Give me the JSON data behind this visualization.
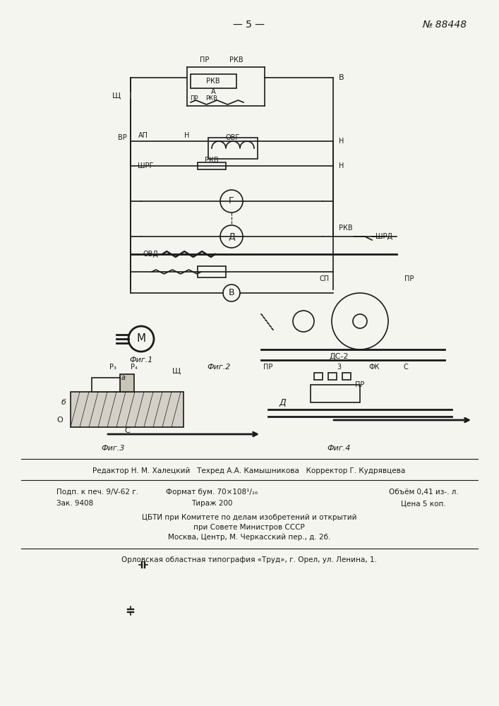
{
  "page_number": "— 5 —",
  "patent_number": "№ 88448",
  "background_color": "#f5f5f0",
  "editor_line": "Редактор Н. М. Халецкий   Техред А.А. Камышникова   Корректор Г. Кудрявцева",
  "info_lines": [
    [
      "Подп. к печ. 9/V-62 г.",
      "Формат бум. 70×108¹/₁₆",
      "Объём 0,41 из-. л."
    ],
    [
      "Зак. 9408",
      "Тираж 200",
      "Цена 5 коп."
    ]
  ],
  "cbti_lines": [
    "ЦБТИ при Комитете по делам изобретений и открытий",
    "при Совете Министров СССР",
    "Москва, Центр, М. Черкасский пер., д. 2б."
  ],
  "printer_line": "Орловская областная типография «Труд», г. Орел, ул. Ленина, 1.",
  "fig1_label": "Фиг.1",
  "fig2_label": "Фиг.2",
  "fig3_label": "Фиг.3",
  "fig4_label": "Фиг.4"
}
